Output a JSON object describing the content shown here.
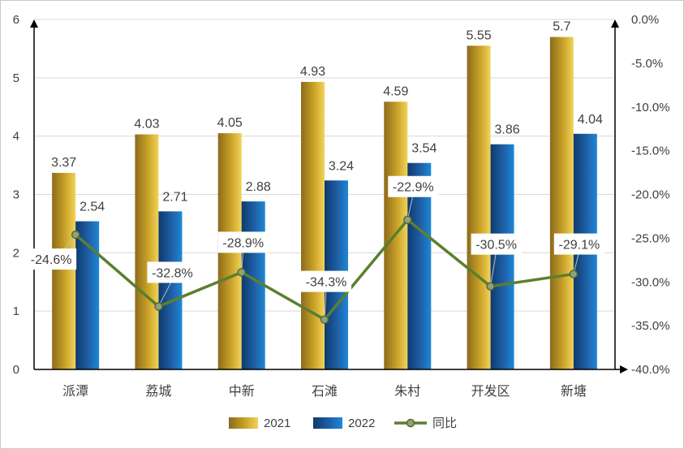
{
  "chart_data": {
    "type": "bar",
    "categories": [
      "派潭",
      "荔城",
      "中新",
      "石滩",
      "朱村",
      "开发区",
      "新塘"
    ],
    "series": [
      {
        "name": "2021",
        "kind": "bar",
        "axis": "left",
        "values": [
          3.37,
          4.03,
          4.05,
          4.93,
          4.59,
          5.55,
          5.7
        ],
        "labels": [
          "3.37",
          "4.03",
          "4.05",
          "4.93",
          "4.59",
          "5.55",
          "5.7"
        ],
        "color": "#C9A227"
      },
      {
        "name": "2022",
        "kind": "bar",
        "axis": "left",
        "values": [
          2.54,
          2.71,
          2.88,
          3.24,
          3.54,
          3.86,
          4.04
        ],
        "labels": [
          "2.54",
          "2.71",
          "2.88",
          "3.24",
          "3.54",
          "3.86",
          "4.04"
        ],
        "color": "#1F5FA6"
      },
      {
        "name": "同比",
        "kind": "line",
        "axis": "right",
        "values": [
          -24.6,
          -32.8,
          -28.9,
          -34.3,
          -22.9,
          -30.5,
          -29.1
        ],
        "labels": [
          "-24.6%",
          "-32.8%",
          "-28.9%",
          "-34.3%",
          "-22.9%",
          "-30.5%",
          "-29.1%"
        ],
        "color": "#5B7F2E"
      }
    ],
    "left_axis": {
      "ylim": [
        0,
        6
      ],
      "ticks": [
        "0",
        "1",
        "2",
        "3",
        "4",
        "5",
        "6"
      ]
    },
    "right_axis": {
      "ylim": [
        -40,
        0
      ],
      "ticks": [
        "0.0%",
        "-5.0%",
        "-10.0%",
        "-15.0%",
        "-20.0%",
        "-25.0%",
        "-30.0%",
        "-35.0%",
        "-40.0%"
      ]
    },
    "legend": {
      "position": "bottom",
      "items": [
        "2021",
        "2022",
        "同比"
      ]
    },
    "grid": true,
    "title": "",
    "xlabel": "",
    "ylabel": ""
  }
}
